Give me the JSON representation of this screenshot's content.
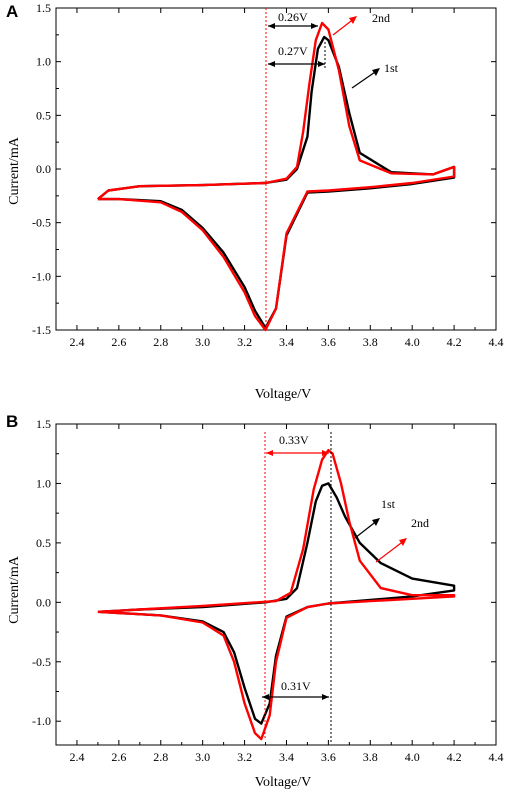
{
  "chart_data": [
    {
      "type": "line",
      "panel": "A",
      "xlabel": "Voltage/V",
      "ylabel": "Current/mA",
      "xlim": [
        2.3,
        4.4
      ],
      "ylim": [
        -1.5,
        1.5
      ],
      "xticks": [
        2.4,
        2.6,
        2.8,
        3.0,
        3.2,
        3.4,
        3.6,
        3.8,
        4.0,
        4.2,
        4.4
      ],
      "yticks": [
        -1.5,
        -1.0,
        -0.5,
        0.0,
        0.5,
        1.0,
        1.5
      ],
      "tick_labels_x": [
        "2.4",
        "2.6",
        "2.8",
        "3.0",
        "3.2",
        "3.4",
        "3.6",
        "3.8",
        "4.0",
        "4.2",
        "4.4"
      ],
      "tick_labels_y": [
        "-1.5",
        "-1.0",
        "-0.5",
        "0.0",
        "0.5",
        "1.0",
        "1.5"
      ],
      "series": [
        {
          "name": "1st",
          "color": "#000000",
          "x": [
            2.5,
            2.6,
            2.8,
            2.9,
            3.0,
            3.1,
            3.2,
            3.25,
            3.3,
            3.35,
            3.4,
            3.5,
            3.6,
            3.8,
            4.0,
            4.2,
            4.2,
            4.1,
            3.9,
            3.75,
            3.7,
            3.65,
            3.6,
            3.58,
            3.55,
            3.52,
            3.5,
            3.45,
            3.4,
            3.3,
            3.0,
            2.7,
            2.55,
            2.5
          ],
          "y": [
            -0.28,
            -0.28,
            -0.3,
            -0.38,
            -0.55,
            -0.78,
            -1.1,
            -1.32,
            -1.48,
            -1.3,
            -0.62,
            -0.22,
            -0.21,
            -0.18,
            -0.14,
            -0.08,
            0.02,
            -0.05,
            -0.03,
            0.15,
            0.52,
            0.95,
            1.2,
            1.23,
            1.12,
            0.72,
            0.3,
            0.0,
            -0.1,
            -0.13,
            -0.15,
            -0.16,
            -0.2,
            -0.28
          ]
        },
        {
          "name": "2nd",
          "color": "#ff0000",
          "x": [
            2.5,
            2.6,
            2.8,
            2.9,
            3.0,
            3.1,
            3.2,
            3.25,
            3.3,
            3.35,
            3.4,
            3.5,
            3.6,
            3.8,
            4.0,
            4.2,
            4.2,
            4.1,
            3.9,
            3.75,
            3.7,
            3.65,
            3.6,
            3.57,
            3.54,
            3.51,
            3.48,
            3.45,
            3.4,
            3.3,
            3.0,
            2.7,
            2.55,
            2.5
          ],
          "y": [
            -0.28,
            -0.28,
            -0.31,
            -0.4,
            -0.57,
            -0.82,
            -1.15,
            -1.37,
            -1.5,
            -1.3,
            -0.6,
            -0.21,
            -0.2,
            -0.17,
            -0.13,
            -0.07,
            0.02,
            -0.05,
            -0.04,
            0.08,
            0.4,
            0.92,
            1.3,
            1.36,
            1.2,
            0.8,
            0.35,
            0.02,
            -0.09,
            -0.13,
            -0.15,
            -0.16,
            -0.2,
            -0.28
          ]
        }
      ],
      "annotations": [
        {
          "text": "0.26V",
          "color": "#000000"
        },
        {
          "text": "0.27V",
          "color": "#000000"
        },
        {
          "text": "1st",
          "color": "#000000"
        },
        {
          "text": "2nd",
          "color": "#ff0000"
        }
      ]
    },
    {
      "type": "line",
      "panel": "B",
      "xlabel": "Voltage/V",
      "ylabel": "Current/mA",
      "xlim": [
        2.3,
        4.4
      ],
      "ylim": [
        -1.2,
        1.5
      ],
      "xticks": [
        2.4,
        2.6,
        2.8,
        3.0,
        3.2,
        3.4,
        3.6,
        3.8,
        4.0,
        4.2,
        4.4
      ],
      "yticks": [
        -1.0,
        -0.5,
        0.0,
        0.5,
        1.0,
        1.5
      ],
      "tick_labels_x": [
        "2.4",
        "2.6",
        "2.8",
        "3.0",
        "3.2",
        "3.4",
        "3.6",
        "3.8",
        "4.0",
        "4.2",
        "4.4"
      ],
      "tick_labels_y": [
        "-1.0",
        "-0.5",
        "0.0",
        "0.5",
        "1.0",
        "1.5"
      ],
      "series": [
        {
          "name": "1st",
          "color": "#000000",
          "x": [
            2.5,
            2.6,
            2.8,
            3.0,
            3.1,
            3.15,
            3.2,
            3.25,
            3.28,
            3.32,
            3.35,
            3.4,
            3.5,
            3.6,
            3.8,
            4.0,
            4.2,
            4.2,
            4.0,
            3.85,
            3.75,
            3.68,
            3.64,
            3.6,
            3.57,
            3.54,
            3.5,
            3.45,
            3.4,
            3.3,
            3.0,
            2.7,
            2.5
          ],
          "y": [
            -0.08,
            -0.09,
            -0.11,
            -0.16,
            -0.25,
            -0.42,
            -0.72,
            -0.98,
            -1.02,
            -0.85,
            -0.45,
            -0.12,
            -0.04,
            -0.01,
            0.02,
            0.05,
            0.1,
            0.14,
            0.2,
            0.33,
            0.5,
            0.72,
            0.88,
            1.0,
            0.98,
            0.85,
            0.5,
            0.12,
            0.03,
            0.0,
            -0.04,
            -0.06,
            -0.08
          ]
        },
        {
          "name": "2nd",
          "color": "#ff0000",
          "x": [
            2.5,
            2.6,
            2.8,
            3.0,
            3.1,
            3.15,
            3.2,
            3.25,
            3.28,
            3.32,
            3.35,
            3.4,
            3.5,
            3.6,
            3.8,
            4.0,
            4.2,
            4.2,
            4.0,
            3.85,
            3.75,
            3.7,
            3.66,
            3.62,
            3.6,
            3.57,
            3.53,
            3.48,
            3.42,
            3.35,
            3.0,
            2.7,
            2.5
          ],
          "y": [
            -0.08,
            -0.09,
            -0.11,
            -0.17,
            -0.28,
            -0.5,
            -0.85,
            -1.1,
            -1.15,
            -0.95,
            -0.5,
            -0.13,
            -0.04,
            -0.01,
            0.01,
            0.03,
            0.05,
            0.06,
            0.06,
            0.12,
            0.35,
            0.68,
            1.0,
            1.25,
            1.28,
            1.2,
            0.95,
            0.45,
            0.08,
            0.01,
            -0.03,
            -0.06,
            -0.08
          ]
        }
      ],
      "annotations": [
        {
          "text": "0.33V",
          "color": "#000000"
        },
        {
          "text": "0.31V",
          "color": "#000000"
        },
        {
          "text": "1st",
          "color": "#000000"
        },
        {
          "text": "2nd",
          "color": "#000000"
        }
      ]
    }
  ]
}
